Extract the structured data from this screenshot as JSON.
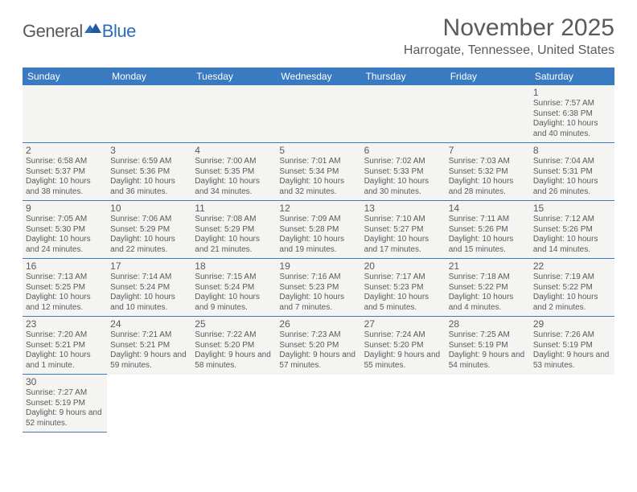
{
  "logo": {
    "part1": "General",
    "part2": "Blue"
  },
  "title": "November 2025",
  "location": "Harrogate, Tennessee, United States",
  "colors": {
    "header_bg": "#3a7ac0",
    "header_text": "#ffffff",
    "cell_bg": "#f4f4f2",
    "border": "#3a7ac0",
    "text": "#5a5a5a",
    "logo_accent": "#2a6db8"
  },
  "daysOfWeek": [
    "Sunday",
    "Monday",
    "Tuesday",
    "Wednesday",
    "Thursday",
    "Friday",
    "Saturday"
  ],
  "weeks": [
    [
      null,
      null,
      null,
      null,
      null,
      null,
      {
        "n": "1",
        "sr": "7:57 AM",
        "ss": "6:38 PM",
        "dl": "10 hours and 40 minutes."
      }
    ],
    [
      {
        "n": "2",
        "sr": "6:58 AM",
        "ss": "5:37 PM",
        "dl": "10 hours and 38 minutes."
      },
      {
        "n": "3",
        "sr": "6:59 AM",
        "ss": "5:36 PM",
        "dl": "10 hours and 36 minutes."
      },
      {
        "n": "4",
        "sr": "7:00 AM",
        "ss": "5:35 PM",
        "dl": "10 hours and 34 minutes."
      },
      {
        "n": "5",
        "sr": "7:01 AM",
        "ss": "5:34 PM",
        "dl": "10 hours and 32 minutes."
      },
      {
        "n": "6",
        "sr": "7:02 AM",
        "ss": "5:33 PM",
        "dl": "10 hours and 30 minutes."
      },
      {
        "n": "7",
        "sr": "7:03 AM",
        "ss": "5:32 PM",
        "dl": "10 hours and 28 minutes."
      },
      {
        "n": "8",
        "sr": "7:04 AM",
        "ss": "5:31 PM",
        "dl": "10 hours and 26 minutes."
      }
    ],
    [
      {
        "n": "9",
        "sr": "7:05 AM",
        "ss": "5:30 PM",
        "dl": "10 hours and 24 minutes."
      },
      {
        "n": "10",
        "sr": "7:06 AM",
        "ss": "5:29 PM",
        "dl": "10 hours and 22 minutes."
      },
      {
        "n": "11",
        "sr": "7:08 AM",
        "ss": "5:29 PM",
        "dl": "10 hours and 21 minutes."
      },
      {
        "n": "12",
        "sr": "7:09 AM",
        "ss": "5:28 PM",
        "dl": "10 hours and 19 minutes."
      },
      {
        "n": "13",
        "sr": "7:10 AM",
        "ss": "5:27 PM",
        "dl": "10 hours and 17 minutes."
      },
      {
        "n": "14",
        "sr": "7:11 AM",
        "ss": "5:26 PM",
        "dl": "10 hours and 15 minutes."
      },
      {
        "n": "15",
        "sr": "7:12 AM",
        "ss": "5:26 PM",
        "dl": "10 hours and 14 minutes."
      }
    ],
    [
      {
        "n": "16",
        "sr": "7:13 AM",
        "ss": "5:25 PM",
        "dl": "10 hours and 12 minutes."
      },
      {
        "n": "17",
        "sr": "7:14 AM",
        "ss": "5:24 PM",
        "dl": "10 hours and 10 minutes."
      },
      {
        "n": "18",
        "sr": "7:15 AM",
        "ss": "5:24 PM",
        "dl": "10 hours and 9 minutes."
      },
      {
        "n": "19",
        "sr": "7:16 AM",
        "ss": "5:23 PM",
        "dl": "10 hours and 7 minutes."
      },
      {
        "n": "20",
        "sr": "7:17 AM",
        "ss": "5:23 PM",
        "dl": "10 hours and 5 minutes."
      },
      {
        "n": "21",
        "sr": "7:18 AM",
        "ss": "5:22 PM",
        "dl": "10 hours and 4 minutes."
      },
      {
        "n": "22",
        "sr": "7:19 AM",
        "ss": "5:22 PM",
        "dl": "10 hours and 2 minutes."
      }
    ],
    [
      {
        "n": "23",
        "sr": "7:20 AM",
        "ss": "5:21 PM",
        "dl": "10 hours and 1 minute."
      },
      {
        "n": "24",
        "sr": "7:21 AM",
        "ss": "5:21 PM",
        "dl": "9 hours and 59 minutes."
      },
      {
        "n": "25",
        "sr": "7:22 AM",
        "ss": "5:20 PM",
        "dl": "9 hours and 58 minutes."
      },
      {
        "n": "26",
        "sr": "7:23 AM",
        "ss": "5:20 PM",
        "dl": "9 hours and 57 minutes."
      },
      {
        "n": "27",
        "sr": "7:24 AM",
        "ss": "5:20 PM",
        "dl": "9 hours and 55 minutes."
      },
      {
        "n": "28",
        "sr": "7:25 AM",
        "ss": "5:19 PM",
        "dl": "9 hours and 54 minutes."
      },
      {
        "n": "29",
        "sr": "7:26 AM",
        "ss": "5:19 PM",
        "dl": "9 hours and 53 minutes."
      }
    ],
    [
      {
        "n": "30",
        "sr": "7:27 AM",
        "ss": "5:19 PM",
        "dl": "9 hours and 52 minutes."
      },
      null,
      null,
      null,
      null,
      null,
      null
    ]
  ],
  "labels": {
    "sunrise": "Sunrise:",
    "sunset": "Sunset:",
    "daylight": "Daylight:"
  }
}
